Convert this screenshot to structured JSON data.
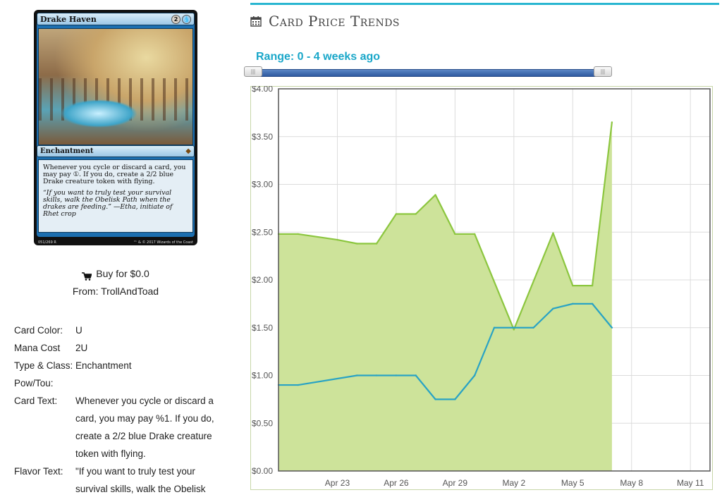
{
  "card": {
    "name": "Drake Haven",
    "mana_generic": "2",
    "mana_color": "blue",
    "type_line": "Enchantment",
    "rules_text": "Whenever you cycle or discard a card, you may pay ①. If you do, create a 2/2 blue Drake creature token with flying.",
    "flavor_text": "“If you want to truly test your survival skills, walk the Obelisk Path when the drakes are feeding.” —Etha, initiate of Rhet crop",
    "collector": "051/269 R",
    "copyright": "™ & © 2017 Wizards of the Coast"
  },
  "buy": {
    "label": "Buy for $0.0",
    "from": "From: TrollAndToad"
  },
  "details": [
    {
      "label": "Card Color:",
      "value": "U"
    },
    {
      "label": "Mana Cost",
      "value": "2U"
    },
    {
      "label": "Type & Class:",
      "value": "Enchantment"
    },
    {
      "label": "Pow/Tou:",
      "value": ""
    },
    {
      "label": "Card Text:",
      "value": "Whenever you cycle or discard a card, you may pay %1. If you do, create a 2/2 blue Drake creature token with flying."
    },
    {
      "label": "Flavor Text:",
      "value": "\"If you want to truly test your survival skills, walk the Obelisk"
    }
  ],
  "price_section": {
    "title": "Card Price Trends",
    "range_label": "Range: 0 - 4 weeks ago",
    "range_min_weeks": 0,
    "range_max_weeks": 4
  },
  "colors": {
    "accent": "#29b6d1",
    "range_text": "#1aa7c9",
    "green_line": "#8cc63f",
    "green_fill": "#cde39a",
    "blue_line": "#29a3c4"
  },
  "chart_data": {
    "type": "area",
    "title": "",
    "xlabel": "",
    "ylabel": "",
    "xlim": [
      "2017-04-20",
      "2017-05-12"
    ],
    "ylim": [
      0,
      4.0
    ],
    "y_ticks": [
      0,
      0.5,
      1.0,
      1.5,
      2.0,
      2.5,
      3.0,
      3.5,
      4.0
    ],
    "y_tick_labels": [
      "$0.00",
      "$0.50",
      "$1.00",
      "$1.50",
      "$2.00",
      "$2.50",
      "$3.00",
      "$3.50",
      "$4.00"
    ],
    "x_ticks": [
      "2017-04-23",
      "2017-04-26",
      "2017-04-29",
      "2017-05-02",
      "2017-05-05",
      "2017-05-08",
      "2017-05-11"
    ],
    "x_tick_labels": [
      "Apr 23",
      "Apr 26",
      "Apr 29",
      "May 2",
      "May 5",
      "May 8",
      "May 11"
    ],
    "grid": true,
    "series": [
      {
        "color": "green",
        "filled": true,
        "x": [
          "2017-04-20",
          "2017-04-21",
          "2017-04-23",
          "2017-04-24",
          "2017-04-25",
          "2017-04-26",
          "2017-04-27",
          "2017-04-28",
          "2017-04-29",
          "2017-04-30",
          "2017-05-02",
          "2017-05-04",
          "2017-05-05",
          "2017-05-06",
          "2017-05-07"
        ],
        "values": [
          2.48,
          2.48,
          2.42,
          2.38,
          2.38,
          2.69,
          2.69,
          2.89,
          2.48,
          2.48,
          1.48,
          2.49,
          1.94,
          1.94,
          3.65
        ]
      },
      {
        "color": "blue",
        "filled": false,
        "x": [
          "2017-04-20",
          "2017-04-21",
          "2017-04-24",
          "2017-04-25",
          "2017-04-26",
          "2017-04-27",
          "2017-04-28",
          "2017-04-29",
          "2017-04-30",
          "2017-05-01",
          "2017-05-02",
          "2017-05-03",
          "2017-05-04",
          "2017-05-05",
          "2017-05-06",
          "2017-05-07"
        ],
        "values": [
          0.9,
          0.9,
          1.0,
          1.0,
          1.0,
          1.0,
          0.75,
          0.75,
          1.0,
          1.5,
          1.5,
          1.5,
          1.7,
          1.75,
          1.75,
          1.5
        ]
      }
    ]
  }
}
